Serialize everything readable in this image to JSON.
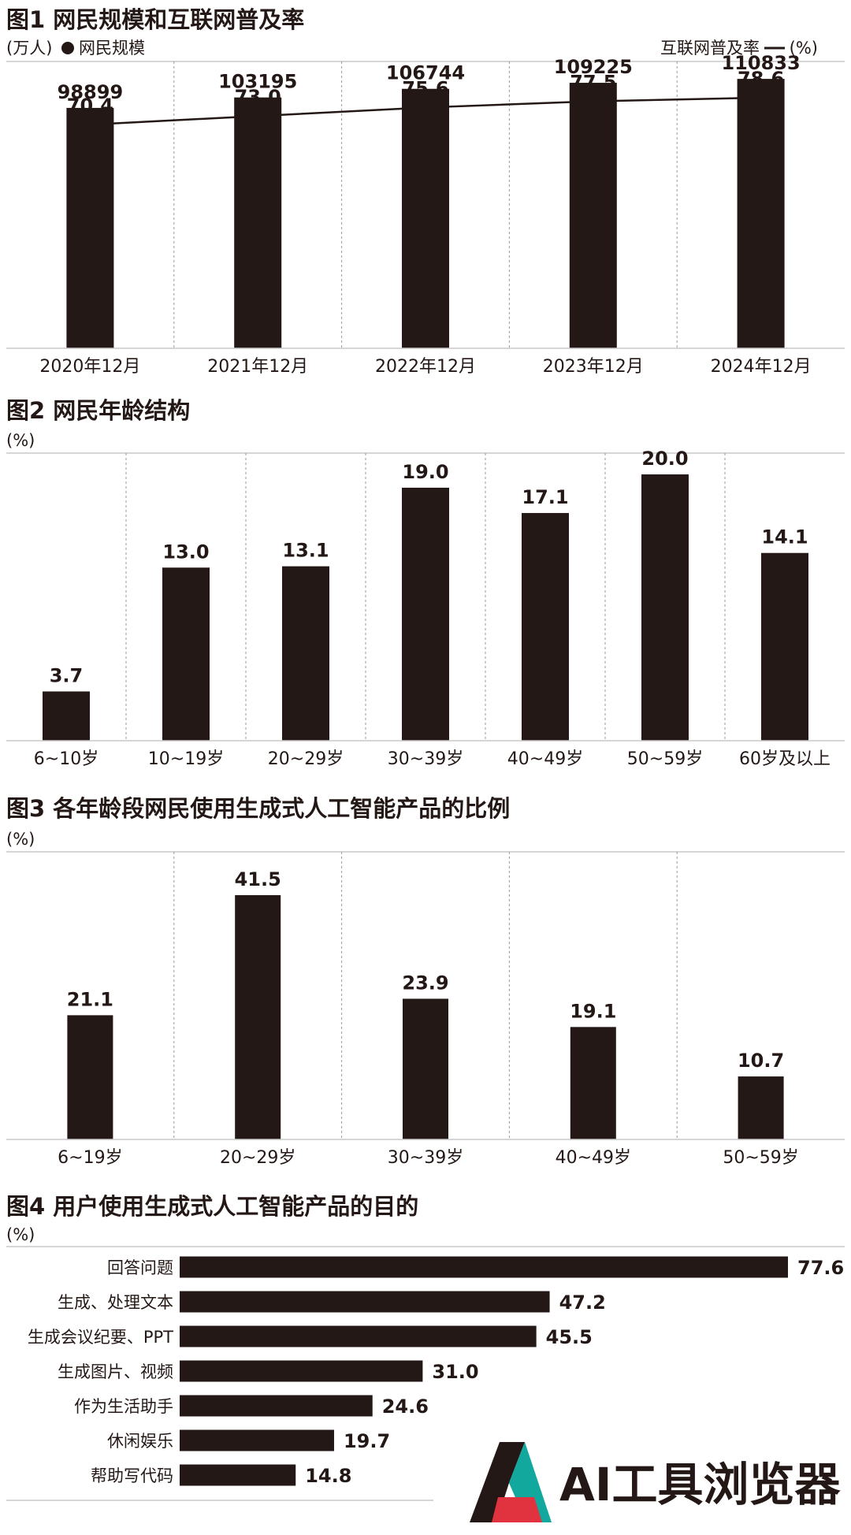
{
  "colors": {
    "bar": "#231815",
    "text": "#231815",
    "axis": "#c9c9c9",
    "grid": "#9a9a9a",
    "logo_red": "#e1333f",
    "logo_teal": "#13a89e"
  },
  "chart_data": [
    {
      "type": "bar+line",
      "title": "图1 网民规模和互联网普及率",
      "left_unit": "(万人)",
      "bar_legend": "网民规模",
      "right_legend": "互联网普及率",
      "right_unit": "(%)",
      "categories": [
        "2020年12月",
        "2021年12月",
        "2022年12月",
        "2023年12月",
        "2024年12月"
      ],
      "series": [
        {
          "name": "网民规模",
          "kind": "bar",
          "values": [
            98899,
            103195,
            106744,
            109225,
            110833
          ]
        },
        {
          "name": "互联网普及率",
          "kind": "line",
          "values": [
            70.4,
            73.0,
            75.6,
            77.5,
            78.6
          ]
        }
      ]
    },
    {
      "type": "bar",
      "title": "图2 网民年龄结构",
      "unit": "(%)",
      "categories": [
        "6~10岁",
        "10~19岁",
        "20~29岁",
        "30~39岁",
        "40~49岁",
        "50~59岁",
        "60岁及以上"
      ],
      "values": [
        3.7,
        13.0,
        13.1,
        19.0,
        17.1,
        20.0,
        14.1
      ]
    },
    {
      "type": "bar",
      "title": "图3 各年龄段网民使用生成式人工智能产品的比例",
      "unit": "(%)",
      "categories": [
        "6~19岁",
        "20~29岁",
        "30~39岁",
        "40~49岁",
        "50~59岁"
      ],
      "values": [
        21.1,
        41.5,
        23.9,
        19.1,
        10.7
      ]
    },
    {
      "type": "bar-horizontal",
      "title": "图4 用户使用生成式人工智能产品的目的",
      "unit": "(%)",
      "categories": [
        "回答问题",
        "生成、处理文本",
        "生成会议纪要、PPT",
        "生成图片、视频",
        "作为生活助手",
        "休闲娱乐",
        "帮助写代码"
      ],
      "values": [
        77.6,
        47.2,
        45.5,
        31.0,
        24.6,
        19.7,
        14.8
      ]
    }
  ],
  "logo": {
    "text": "AI工具浏览器"
  }
}
